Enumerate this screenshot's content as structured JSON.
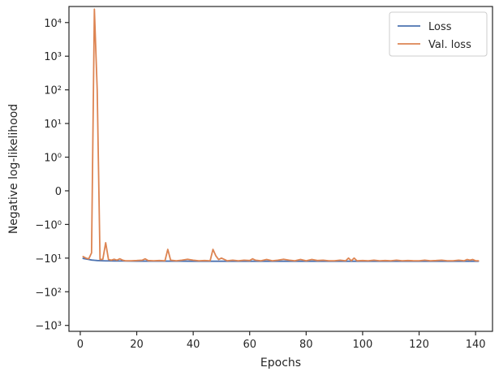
{
  "chart_data": {
    "type": "line",
    "xlabel": "Epochs",
    "ylabel": "Negative log-likelihood",
    "yscale": "symlog",
    "xlim": [
      -4,
      146
    ],
    "ylim": [
      -1500,
      30000
    ],
    "x_ticks": [
      0,
      20,
      40,
      60,
      80,
      100,
      120,
      140
    ],
    "x_tick_labels": [
      "0",
      "20",
      "40",
      "60",
      "80",
      "100",
      "120",
      "140"
    ],
    "y_ticks": [
      10000,
      1000,
      100,
      10,
      1,
      0,
      -1,
      -10,
      -100,
      -1000
    ],
    "y_tick_labels": [
      "10⁴",
      "10³",
      "10²",
      "10¹",
      "10⁰",
      "0",
      "−10⁰",
      "−10¹",
      "−10²",
      "−10³"
    ],
    "legend_position": "top-right",
    "grid": false,
    "series": [
      {
        "name": "Loss",
        "color": "#4c72b0",
        "x": [
          1,
          2,
          3,
          4,
          5,
          6,
          7,
          8,
          9,
          10,
          12,
          15,
          20,
          25,
          30,
          35,
          40,
          50,
          60,
          70,
          80,
          90,
          100,
          110,
          120,
          130,
          141
        ],
        "y": [
          -10.2,
          -10.6,
          -11.0,
          -11.4,
          -11.6,
          -11.8,
          -11.9,
          -12.0,
          -12.1,
          -12.1,
          -12.2,
          -12.2,
          -12.3,
          -12.3,
          -12.3,
          -12.3,
          -12.4,
          -12.4,
          -12.4,
          -12.4,
          -12.4,
          -12.4,
          -12.4,
          -12.4,
          -12.4,
          -12.4,
          -12.4
        ]
      },
      {
        "name": "Val. loss",
        "color": "#dd8452",
        "x": [
          1,
          2,
          3,
          4,
          5,
          6,
          7,
          8,
          9,
          10,
          11,
          12,
          13,
          14,
          15,
          16,
          18,
          20,
          22,
          23,
          24,
          26,
          28,
          30,
          31,
          32,
          34,
          36,
          38,
          40,
          42,
          44,
          46,
          47,
          48,
          49,
          50,
          52,
          54,
          56,
          58,
          60,
          61,
          62,
          64,
          66,
          68,
          70,
          72,
          74,
          76,
          78,
          80,
          82,
          84,
          86,
          88,
          90,
          92,
          94,
          95,
          96,
          97,
          98,
          100,
          102,
          104,
          106,
          108,
          110,
          112,
          114,
          116,
          118,
          120,
          122,
          124,
          126,
          128,
          130,
          132,
          134,
          136,
          137,
          138,
          139,
          140,
          141
        ],
        "y": [
          -9.0,
          -10.0,
          -10.5,
          -7.0,
          25000,
          100,
          -11.0,
          -10.8,
          -3.5,
          -11.0,
          -11.5,
          -10.8,
          -11.5,
          -10.5,
          -11.5,
          -12.0,
          -12.0,
          -11.8,
          -11.5,
          -10.5,
          -11.8,
          -12.0,
          -11.8,
          -12.0,
          -5.5,
          -11.5,
          -12.0,
          -11.5,
          -10.8,
          -11.5,
          -12.0,
          -11.8,
          -12.0,
          -5.5,
          -8.5,
          -11.0,
          -10.0,
          -12.0,
          -11.5,
          -12.0,
          -11.5,
          -11.8,
          -10.5,
          -11.5,
          -12.0,
          -11.0,
          -12.0,
          -11.5,
          -10.8,
          -11.5,
          -12.0,
          -11.0,
          -12.0,
          -11.0,
          -11.8,
          -11.5,
          -12.0,
          -12.0,
          -11.5,
          -12.0,
          -10.0,
          -12.0,
          -10.0,
          -12.0,
          -11.8,
          -12.0,
          -11.5,
          -12.0,
          -11.8,
          -12.0,
          -11.5,
          -12.0,
          -11.8,
          -12.0,
          -12.0,
          -11.5,
          -12.0,
          -11.8,
          -11.5,
          -12.0,
          -12.0,
          -11.5,
          -12.0,
          -11.0,
          -11.5,
          -11.0,
          -12.0,
          -12.0
        ]
      }
    ]
  }
}
